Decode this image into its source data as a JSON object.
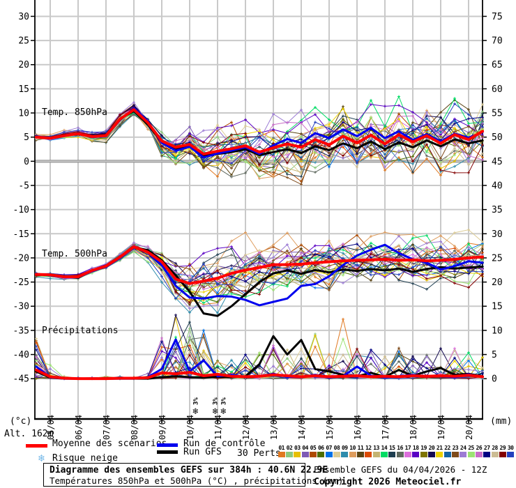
{
  "plot": {
    "left_axis_unit": "(°c)",
    "right_axis_unit": "(mm)",
    "altitude_label": "Alt. 162m",
    "panel_labels": {
      "t850": "Temp. 850hPa",
      "t500": "Temp. 500hPa",
      "precip": "Précipitations"
    }
  },
  "legend": {
    "mean_label": "Moyenne des scénarios",
    "control_label": "Run de contrôle",
    "gfs_label": "Run GFS",
    "perts_label": "30 Perts.",
    "snow_label": "Risque neige",
    "snow_icon": "❄",
    "member_ids": [
      "01",
      "02",
      "03",
      "04",
      "05",
      "06",
      "07",
      "08",
      "09",
      "10",
      "11",
      "12",
      "13",
      "14",
      "15",
      "16",
      "17",
      "18",
      "19",
      "20",
      "21",
      "22",
      "23",
      "24",
      "25",
      "26",
      "27",
      "28",
      "29",
      "30"
    ],
    "member_colors": [
      "#e07820",
      "#8cc87c",
      "#e6c000",
      "#7e5ab4",
      "#ae4a00",
      "#4e6e00",
      "#0072e8",
      "#dccc96",
      "#2e8cac",
      "#de9c5c",
      "#5a4412",
      "#dc4a00",
      "#c4b472",
      "#00dc64",
      "#1e3e50",
      "#5e685e",
      "#dc6edc",
      "#5a00c4",
      "#7e7400",
      "#140a50",
      "#ecd200",
      "#1464a4",
      "#7e4a1a",
      "#9c7cd4",
      "#9ce274",
      "#c86cc8",
      "#000082",
      "#ccbc94",
      "#820000",
      "#2440be"
    ]
  },
  "footer": {
    "title": "Diagramme des ensembles GEFS sur 384h : 40.6N 22.9E",
    "subtitle": "Températures 850hPa et 500hPa (°C) , précipitations (mm)",
    "run_info": "Ensemble GEFS du 04/04/2026 - 12Z",
    "copyright": "Copyright 2026 Meteociel.fr"
  },
  "colors": {
    "mean": "#ff0000",
    "control": "#0000ee",
    "gfs": "#000000",
    "grid": "#c9c9c9",
    "zero_line": "#8c8c8c",
    "axis": "#000000",
    "snow": "#74b8e8",
    "snow_text": "#1515cc"
  },
  "chart_data": {
    "type": "line",
    "title": "Diagramme des ensembles GEFS sur 384h : 40.6N 22.9E",
    "subtitle": "Températures 850hPa et 500hPa (°C) , précipitations (mm)",
    "x_dates": [
      "05/04",
      "06/04",
      "07/04",
      "08/04",
      "09/04",
      "10/04",
      "11/04",
      "12/04",
      "13/04",
      "14/04",
      "15/04",
      "16/04",
      "17/04",
      "18/04",
      "19/04",
      "20/04"
    ],
    "x_axis": {
      "start_hour": 0,
      "step_hours": 12,
      "points": 33,
      "run": "04/04/2026 - 12Z"
    },
    "y_left_ticks": [
      30,
      25,
      20,
      15,
      10,
      5,
      0,
      -5,
      -10,
      -15,
      -20,
      -25,
      -30,
      -35,
      -40,
      -45
    ],
    "y_right_ticks": [
      75,
      70,
      65,
      60,
      55,
      50,
      45,
      40,
      35,
      30,
      25,
      20,
      15,
      10,
      5,
      0
    ],
    "y_left_label": "(°c)",
    "y_right_label": "(mm)",
    "grid": true,
    "panels": [
      {
        "id": "t850",
        "label": "Temp. 850hPa",
        "unit": "°C",
        "series": [
          {
            "name": "Moyenne des scénarios",
            "role": "mean",
            "values": [
              5.0,
              4.8,
              5.3,
              5.7,
              5.1,
              5.3,
              8.7,
              10.7,
              8.0,
              4.2,
              2.9,
              3.5,
              1.5,
              2.1,
              2.6,
              3.2,
              1.9,
              2.8,
              3.6,
              2.9,
              4.5,
              3.4,
              5.2,
              3.8,
              5.4,
              3.6,
              5.5,
              4.0,
              5.3,
              3.7,
              5.5,
              4.5,
              6.2
            ]
          },
          {
            "name": "Run de contrôle",
            "role": "control",
            "values": [
              5.1,
              4.7,
              5.2,
              5.8,
              5.0,
              5.2,
              8.5,
              11.0,
              8.3,
              3.8,
              2.2,
              3.0,
              0.8,
              1.6,
              2.2,
              2.9,
              1.5,
              3.3,
              4.6,
              3.8,
              5.8,
              4.8,
              6.6,
              5.2,
              6.9,
              4.8,
              6.2,
              4.4,
              5.6,
              4.1,
              5.7,
              4.9,
              6.0
            ]
          },
          {
            "name": "Run GFS",
            "role": "gfs",
            "values": [
              5.0,
              4.9,
              5.4,
              5.6,
              5.2,
              5.4,
              8.8,
              10.4,
              7.6,
              4.0,
              2.6,
              3.1,
              1.1,
              1.5,
              1.9,
              2.5,
              1.3,
              1.9,
              2.5,
              1.7,
              3.1,
              2.3,
              3.7,
              2.7,
              4.1,
              2.5,
              3.9,
              2.9,
              4.3,
              3.1,
              4.5,
              3.7,
              4.3
            ]
          }
        ],
        "ensemble_spread": [
          0.4,
          0.4,
          0.5,
          0.5,
          0.6,
          0.7,
          0.8,
          0.7,
          1.0,
          1.8,
          2.5,
          2.8,
          3.0,
          3.2,
          3.3,
          3.4,
          3.5,
          3.5,
          3.6,
          3.7,
          3.8,
          3.8,
          3.9,
          4.0,
          4.0,
          4.0,
          4.1,
          4.1,
          4.2,
          4.2,
          4.3,
          4.3,
          4.4
        ],
        "clamp": [
          -6.5,
          13.8
        ]
      },
      {
        "id": "t500",
        "label": "Temp. 500hPa",
        "unit": "°C",
        "series": [
          {
            "name": "Moyenne des scénarios",
            "role": "mean",
            "values": [
              -23.4,
              -23.5,
              -23.9,
              -23.9,
              -22.6,
              -21.7,
              -19.8,
              -17.7,
              -18.8,
              -20.8,
              -24.4,
              -25.3,
              -24.8,
              -24.2,
              -23.2,
              -22.5,
              -22.0,
              -21.4,
              -21.4,
              -21.3,
              -21.0,
              -20.8,
              -20.6,
              -20.5,
              -20.4,
              -20.3,
              -20.5,
              -20.4,
              -20.6,
              -20.5,
              -20.3,
              -20.0,
              -19.8
            ]
          },
          {
            "name": "Run de contrôle",
            "role": "control",
            "values": [
              -23.4,
              -23.6,
              -24.0,
              -24.0,
              -22.8,
              -21.8,
              -19.9,
              -17.6,
              -18.9,
              -21.5,
              -25.8,
              -28.2,
              -28.4,
              -27.9,
              -28.0,
              -28.7,
              -29.8,
              -29.1,
              -28.4,
              -25.8,
              -25.4,
              -23.8,
              -21.5,
              -19.5,
              -18.3,
              -17.3,
              -19.0,
              -20.3,
              -21.0,
              -22.4,
              -21.7,
              -20.7,
              -21.0
            ]
          },
          {
            "name": "Run GFS",
            "role": "gfs",
            "values": [
              -23.4,
              -23.5,
              -23.8,
              -24.1,
              -22.7,
              -21.6,
              -19.7,
              -17.8,
              -18.4,
              -20.5,
              -23.6,
              -27.0,
              -31.5,
              -32.0,
              -30.0,
              -27.5,
              -25.0,
              -23.2,
              -22.6,
              -23.3,
              -22.5,
              -23.0,
              -22.4,
              -22.7,
              -22.3,
              -22.6,
              -22.2,
              -22.9,
              -22.3,
              -21.9,
              -22.2,
              -22.0,
              -21.8
            ]
          }
        ],
        "ensemble_spread": [
          0.35,
          0.35,
          0.35,
          0.35,
          0.35,
          0.4,
          0.5,
          0.6,
          1.0,
          1.8,
          2.8,
          3.5,
          3.6,
          3.6,
          3.5,
          3.4,
          3.4,
          3.3,
          3.2,
          3.2,
          3.1,
          3.1,
          3.0,
          3.0,
          2.9,
          2.9,
          2.9,
          2.9,
          2.9,
          2.9,
          2.9,
          2.9,
          2.9
        ],
        "clamp": [
          -34.8,
          -13.8
        ]
      },
      {
        "id": "precip",
        "label": "Précipitations",
        "unit": "mm",
        "series": [
          {
            "name": "Moyenne des scénarios",
            "role": "mean",
            "values": [
              1.8,
              0.4,
              0.1,
              0.0,
              0.0,
              0.0,
              0.1,
              0.1,
              0.2,
              1.2,
              1.0,
              1.3,
              0.6,
              0.9,
              0.5,
              0.4,
              0.5,
              0.8,
              0.6,
              0.4,
              0.6,
              0.4,
              0.5,
              0.6,
              0.4,
              0.5,
              0.4,
              0.6,
              0.5,
              0.6,
              0.5,
              0.7,
              0.4
            ]
          },
          {
            "name": "Run de contrôle",
            "role": "control",
            "values": [
              2.5,
              0.3,
              0,
              0,
              0,
              0,
              0,
              0,
              0.3,
              2.0,
              8.1,
              1.5,
              3.8,
              0.5,
              0.8,
              0.3,
              0.5,
              1.0,
              0.4,
              0.3,
              0.8,
              0.2,
              0.5,
              2.5,
              0.6,
              0.3,
              0.5,
              0.8,
              0.4,
              0.6,
              0.3,
              0.9,
              0.3
            ]
          },
          {
            "name": "Run GFS",
            "role": "gfs",
            "values": [
              1.5,
              0.2,
              0,
              0,
              0,
              0,
              0,
              0,
              0,
              0.3,
              0.5,
              0.3,
              0.2,
              0.4,
              0.3,
              0.5,
              3.0,
              8.8,
              5.0,
              8.0,
              2.0,
              1.5,
              0.8,
              0.5,
              1.2,
              0.4,
              1.8,
              0.6,
              1.5,
              2.2,
              0.8,
              1.0,
              0.5
            ]
          }
        ],
        "spike_probability": [
          0.8,
          0.3,
          0.05,
          0.05,
          0.05,
          0.05,
          0.05,
          0.05,
          0.15,
          0.45,
          0.5,
          0.5,
          0.45,
          0.3,
          0.3,
          0.3,
          0.35,
          0.35,
          0.3,
          0.3,
          0.35,
          0.3,
          0.35,
          0.3,
          0.3,
          0.3,
          0.3,
          0.3,
          0.3,
          0.35,
          0.3,
          0.35,
          0.3
        ],
        "spike_max": [
          8,
          3,
          0.4,
          0.4,
          0.4,
          0.4,
          0.4,
          0.4,
          2,
          9,
          13,
          13,
          10,
          5,
          4,
          5,
          6,
          7,
          6,
          7,
          10,
          5,
          12,
          7,
          6,
          5,
          7,
          5,
          6,
          9,
          6,
          7,
          5
        ],
        "clamp": [
          0,
          13.4
        ]
      }
    ],
    "members_count": 30,
    "snow_risk": [
      {
        "hour": 137,
        "label": "3%"
      },
      {
        "hour": 154,
        "label": "3%"
      },
      {
        "hour": 161,
        "label": "3%"
      }
    ]
  }
}
